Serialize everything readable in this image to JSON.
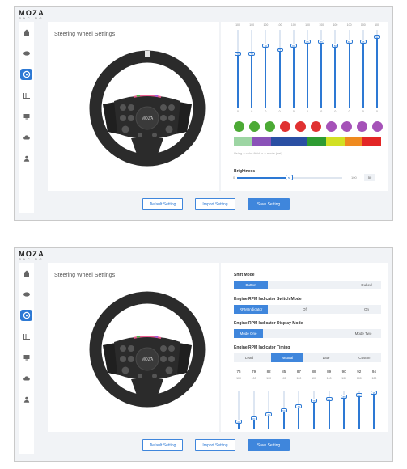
{
  "brand": {
    "logo_text": "MOZA",
    "logo_sub": "RACING"
  },
  "sidebar": {
    "items": [
      {
        "icon": "home-icon"
      },
      {
        "icon": "pedal-icon"
      },
      {
        "icon": "steering-wheel-icon"
      },
      {
        "icon": "wheelbase-icon"
      },
      {
        "icon": "dashboard-icon"
      },
      {
        "icon": "cloud-icon"
      },
      {
        "icon": "user-icon"
      }
    ],
    "active_index": 2
  },
  "screen1": {
    "panel_title": "Steering Wheel Settings",
    "sliders": {
      "top": [
        "100",
        "100",
        "100",
        "100",
        "100",
        "100",
        "100",
        "100",
        "100",
        "100",
        "100"
      ],
      "values": [
        "70",
        "70",
        "80",
        "75",
        "80",
        "85",
        "85",
        "80",
        "85",
        "85",
        "92"
      ],
      "bottom": [
        "0",
        "0",
        "0",
        "0",
        "0",
        "0",
        "0",
        "0",
        "0",
        "0",
        "0"
      ],
      "levels": [
        0.7,
        0.7,
        0.8,
        0.75,
        0.8,
        0.85,
        0.85,
        0.8,
        0.85,
        0.85,
        0.92
      ]
    },
    "indicator_colors": [
      "#4caa35",
      "#4caa35",
      "#4caa35",
      "#e03131",
      "#e03131",
      "#e03131",
      "#a552b8",
      "#a552b8",
      "#a552b8",
      "#a552b8"
    ],
    "color_bar": [
      "#9dd5a3",
      "#8a52b8",
      "#2a4fa3",
      "#2a4fa3",
      "#2e9b32",
      "#d2e023",
      "#ef8a1f",
      "#e32626"
    ],
    "hint_text": "Using a color field to a mode (set)",
    "brightness_label": "Brightness",
    "brightness_min": "0",
    "brightness_max": "100",
    "brightness_value": "50",
    "brightness_knob": "50",
    "brightness_level": 0.5,
    "buttons": {
      "default": "Default Setting",
      "import": "Import Setting",
      "save": "Save Setting"
    }
  },
  "screen2": {
    "panel_title": "Steering Wheel Settings",
    "shift_mode": {
      "label": "Shift Mode",
      "options": [
        "Button",
        "Dubed"
      ],
      "selected": 0
    },
    "switch_mode": {
      "label": "Engine RPM Indicator Switch Mode",
      "options": [
        "RPM Indicator",
        "Off",
        "On"
      ],
      "selected": 0
    },
    "display_mode": {
      "label": "Engine RPM Indicator Display Mode",
      "options": [
        "Mode One",
        "Mode Two"
      ],
      "selected": 0
    },
    "timing": {
      "label": "Engine RPM Indicator Timing",
      "options": [
        "Lead",
        "Neutral",
        "Late",
        "Custom"
      ],
      "selected": 1
    },
    "rpm_values": [
      "75",
      "79",
      "82",
      "85",
      "87",
      "88",
      "89",
      "90",
      "92",
      "94"
    ],
    "rpm_units": [
      "100",
      "100",
      "100",
      "100",
      "100",
      "100",
      "100",
      "100",
      "100",
      "100"
    ],
    "slider_knobs": [
      "20",
      "30",
      "40",
      "50",
      "60",
      "75",
      "80",
      "85",
      "90",
      "95"
    ],
    "slider_levels": [
      0.2,
      0.3,
      0.4,
      0.5,
      0.6,
      0.75,
      0.8,
      0.85,
      0.9,
      0.95
    ],
    "buttons": {
      "default": "Default Setting",
      "import": "Import Setting",
      "save": "Save Setting"
    }
  }
}
